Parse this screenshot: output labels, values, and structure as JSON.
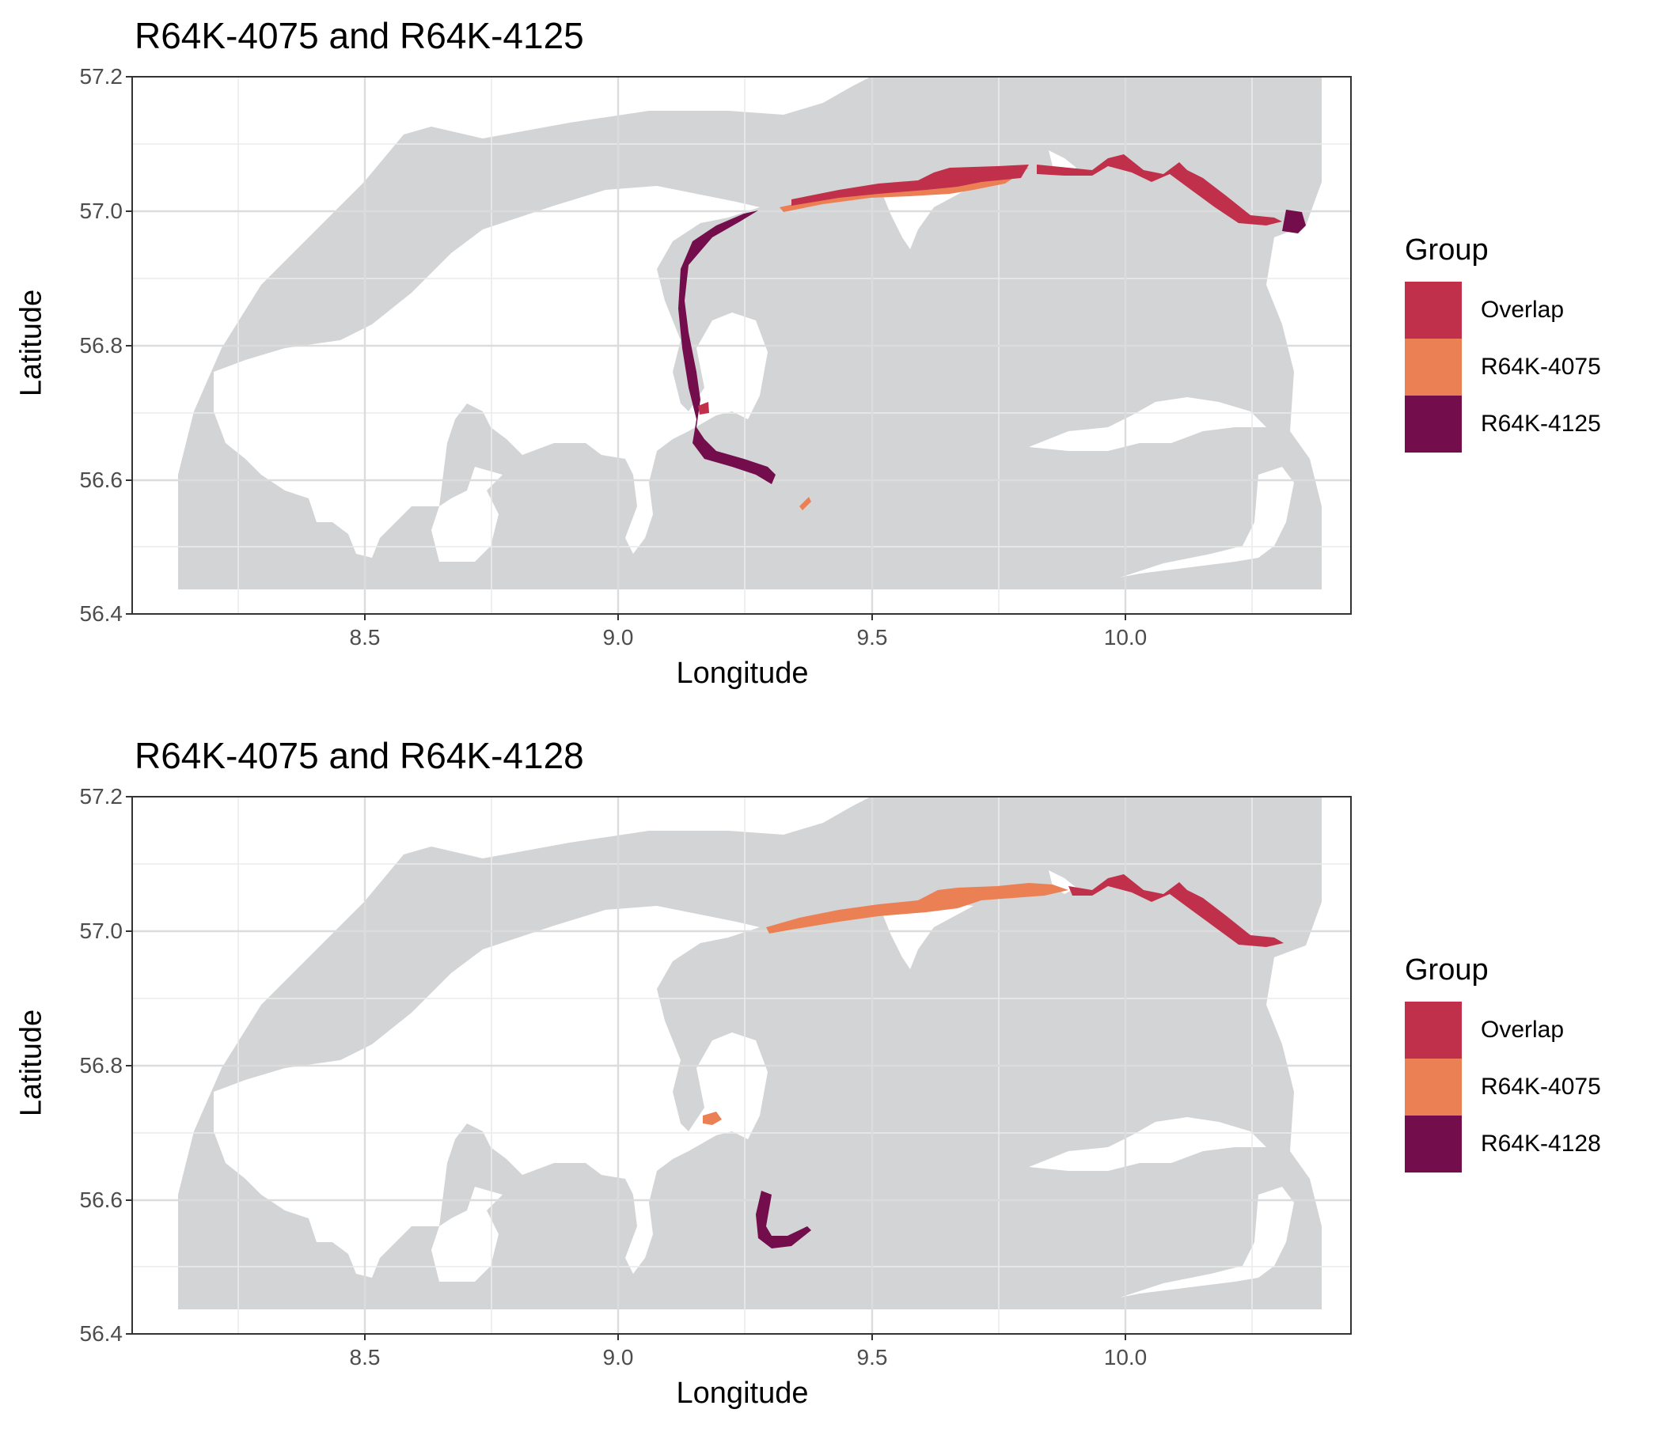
{
  "colors": {
    "land": "#d3d4d6",
    "water": "#ffffff",
    "overlap": "#c0304a",
    "r4075": "#ec8055",
    "r4125": "#730d4b",
    "r4128": "#730d4b"
  },
  "panels": [
    {
      "title": "R64K-4075 and R64K-4125",
      "xlabel": "Longitude",
      "ylabel": "Latitude",
      "xticks": [
        "8.5",
        "9.0",
        "9.5",
        "10.0"
      ],
      "yticks": [
        "57.2",
        "57.0",
        "56.8",
        "56.6",
        "56.4"
      ],
      "legend": {
        "title": "Group",
        "items": [
          {
            "label": "Overlap",
            "color": "#c0304a"
          },
          {
            "label": "R64K-4075",
            "color": "#ec8055"
          },
          {
            "label": "R64K-4125",
            "color": "#730d4b"
          }
        ]
      }
    },
    {
      "title": "R64K-4075 and R64K-4128",
      "xlabel": "Longitude",
      "ylabel": "Latitude",
      "xticks": [
        "8.5",
        "9.0",
        "9.5",
        "10.0"
      ],
      "yticks": [
        "57.2",
        "57.0",
        "56.8",
        "56.6",
        "56.4"
      ],
      "legend": {
        "title": "Group",
        "items": [
          {
            "label": "Overlap",
            "color": "#c0304a"
          },
          {
            "label": "R64K-4075",
            "color": "#ec8055"
          },
          {
            "label": "R64K-4128",
            "color": "#730d4b"
          }
        ]
      }
    }
  ],
  "chart_data": [
    {
      "type": "map",
      "title": "R64K-4075 and R64K-4125",
      "xlabel": "Longitude",
      "ylabel": "Latitude",
      "xlim": [
        8.06,
        10.49
      ],
      "ylim": [
        56.4,
        57.2
      ],
      "grid": true,
      "legend_position": "right",
      "groups": [
        "Overlap",
        "R64K-4075",
        "R64K-4125"
      ]
    },
    {
      "type": "map",
      "title": "R64K-4075 and R64K-4128",
      "xlabel": "Longitude",
      "ylabel": "Latitude",
      "xlim": [
        8.06,
        10.49
      ],
      "ylim": [
        56.4,
        57.2
      ],
      "grid": true,
      "legend_position": "right",
      "groups": [
        "Overlap",
        "R64K-4075",
        "R64K-4128"
      ]
    }
  ]
}
